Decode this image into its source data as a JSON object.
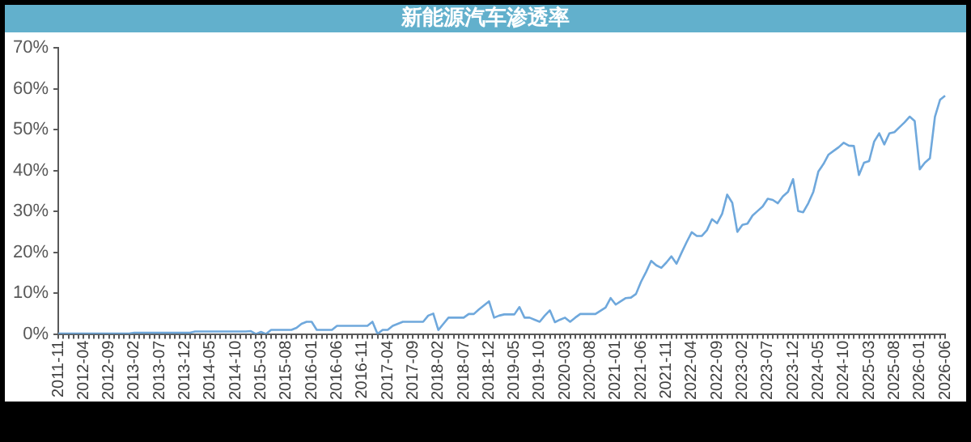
{
  "chart_data": {
    "type": "line",
    "title": "新能源汽车渗透率",
    "categories": [
      "2011-11",
      null,
      null,
      null,
      null,
      "2012-04",
      null,
      null,
      null,
      null,
      "2012-09",
      null,
      null,
      null,
      null,
      "2013-02",
      null,
      null,
      null,
      null,
      "2013-07",
      null,
      null,
      null,
      null,
      "2013-12",
      null,
      null,
      null,
      null,
      "2014-05",
      null,
      null,
      null,
      null,
      "2014-10",
      null,
      null,
      null,
      null,
      "2015-03",
      null,
      null,
      null,
      null,
      "2015-08",
      null,
      null,
      null,
      null,
      "2016-01",
      null,
      null,
      null,
      null,
      "2016-06",
      null,
      null,
      null,
      null,
      "2016-11",
      null,
      null,
      null,
      null,
      "2017-04",
      null,
      null,
      null,
      null,
      "2017-09",
      null,
      null,
      null,
      null,
      "2018-02",
      null,
      null,
      null,
      null,
      "2018-07",
      null,
      null,
      null,
      null,
      "2018-12",
      null,
      null,
      null,
      null,
      "2019-05",
      null,
      null,
      null,
      null,
      "2019-10",
      null,
      null,
      null,
      null,
      "2020-03",
      null,
      null,
      null,
      null,
      "2020-08",
      null,
      null,
      null,
      null,
      "2021-01",
      null,
      null,
      null,
      null,
      "2021-06",
      null,
      null,
      null,
      null,
      "2021-11",
      null,
      null,
      null,
      null,
      "2022-04",
      null,
      null,
      null,
      null,
      "2022-09",
      null,
      null,
      null,
      null,
      "2023-02",
      null,
      null,
      null,
      null,
      "2023-07",
      null,
      null,
      null,
      null,
      "2023-12",
      null,
      null,
      null,
      null,
      "2024-05",
      null,
      null,
      null,
      null,
      "2024-10",
      null,
      null,
      null,
      null,
      "2025-03",
      null,
      null,
      null,
      null,
      "2025-08",
      null,
      null,
      null,
      null,
      "2026-01",
      null,
      null,
      null,
      null,
      "2026-06"
    ],
    "series": [
      {
        "color": "#6fa8dc",
        "values": [
          0.1,
          0.1,
          0.1,
          0.1,
          0.1,
          0.1,
          0.1,
          0.1,
          0.1,
          0.1,
          0.1,
          0.1,
          0.1,
          0.1,
          0.1,
          0.3,
          0.3,
          0.3,
          0.3,
          0.3,
          0.3,
          0.3,
          0.3,
          0.3,
          0.3,
          0.3,
          0.3,
          0.6,
          0.6,
          0.6,
          0.6,
          0.6,
          0.6,
          0.6,
          0.6,
          0.6,
          0.6,
          0.6,
          0.7,
          0,
          0.5,
          0,
          1,
          1,
          1,
          1,
          1,
          1.5,
          2.5,
          3,
          3,
          1,
          1,
          1,
          1,
          2,
          2,
          2,
          2,
          2,
          2,
          2,
          3,
          0,
          1,
          1,
          2,
          2.5,
          3,
          3,
          3,
          3,
          3,
          4.5,
          5,
          1,
          2.5,
          4,
          4,
          4,
          4,
          4.9,
          4.9,
          6,
          7,
          8,
          4,
          4.5,
          4.8,
          4.8,
          4.8,
          6.6,
          4,
          4,
          3.5,
          3,
          4.5,
          5.8,
          2.9,
          3.5,
          4,
          3,
          4,
          4.9,
          4.9,
          4.9,
          4.9,
          5.7,
          6.5,
          8.8,
          7.2,
          8,
          8.8,
          8.9,
          9.8,
          12.8,
          15.2,
          17.9,
          16.8,
          16.2,
          17.5,
          19,
          17.2,
          19.9,
          22.5,
          24.9,
          24,
          24,
          25.4,
          28.1,
          27.1,
          29.4,
          34.1,
          32.1,
          25,
          26.7,
          27,
          29,
          30.1,
          31.2,
          33.1,
          32.8,
          32,
          33.7,
          34.8,
          37.9,
          30.1,
          29.8,
          32,
          34.8,
          39.8,
          41.6,
          43.9,
          44.8,
          45.7,
          46.8,
          46.1,
          46,
          38.9,
          41.9,
          42.3,
          47.1,
          49.1,
          46.4,
          49.1,
          49.4,
          50.6,
          51.8,
          53.2,
          52.1,
          40.3,
          41.9,
          43,
          53.2,
          57.3,
          58.3
        ]
      }
    ],
    "ylim": [
      0,
      70
    ],
    "yticks": [
      {
        "value": 0,
        "label": "0%"
      },
      {
        "value": 10,
        "label": "10%"
      },
      {
        "value": 20,
        "label": "20%"
      },
      {
        "value": 30,
        "label": "30%"
      },
      {
        "value": 40,
        "label": "40%"
      },
      {
        "value": 50,
        "label": "50%"
      },
      {
        "value": 60,
        "label": "60%"
      },
      {
        "value": 70,
        "label": "70%"
      }
    ],
    "grid": false,
    "legend": false,
    "marker": "none"
  }
}
